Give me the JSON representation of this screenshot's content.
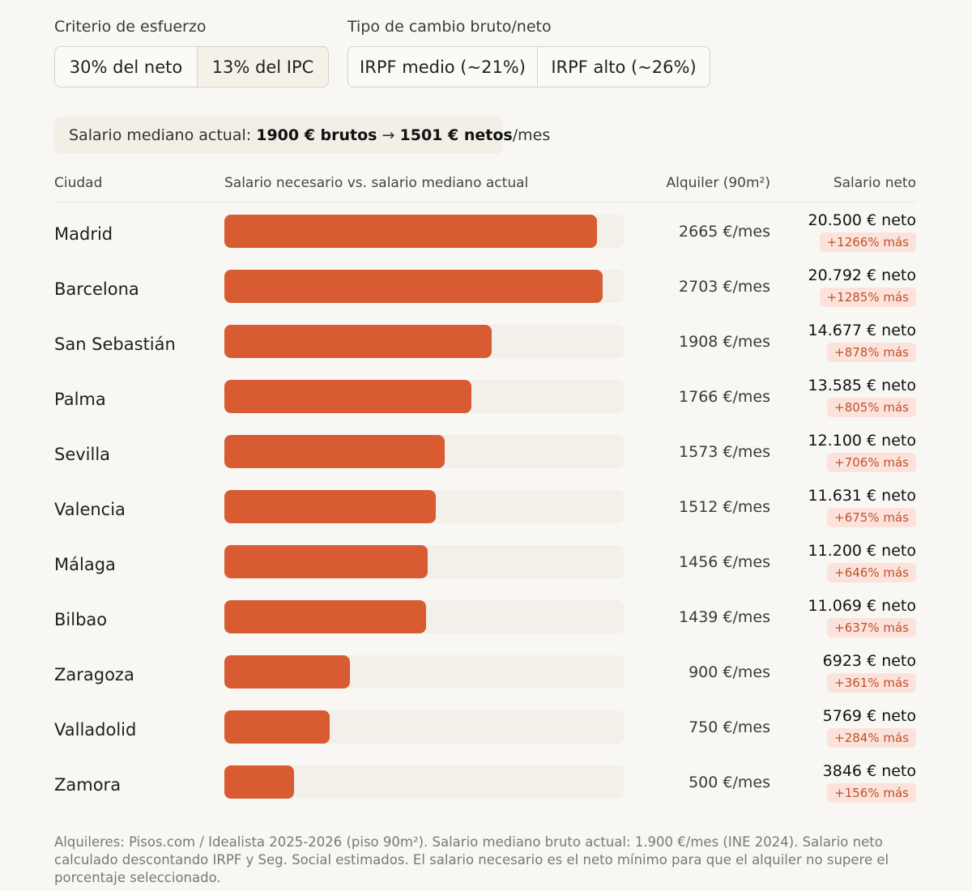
{
  "controls": {
    "effort_label": "Criterio de esfuerzo",
    "effort_options": [
      "30% del neto",
      "13% del IPC"
    ],
    "effort_selected": "13% del IPC",
    "tax_label": "Tipo de cambio bruto/neto",
    "tax_options": [
      "IRPF medio (~21%)",
      "IRPF alto (~26%)"
    ]
  },
  "summary": {
    "prefix": "Salario mediano actual:",
    "gross": "1900 € brutos",
    "arrow": "→",
    "net": "1501 € netos",
    "suffix": "/mes"
  },
  "table_headers": {
    "city": "Ciudad",
    "bar": "Salario necesario vs. salario mediano actual",
    "rent": "Alquiler (90m²)",
    "net": "Salario neto"
  },
  "chart_data": {
    "type": "bar",
    "orientation": "horizontal",
    "categories": [
      "Madrid",
      "Barcelona",
      "San Sebastián",
      "Palma",
      "Sevilla",
      "Valencia",
      "Málaga",
      "Bilbao",
      "Zaragoza",
      "Valladolid",
      "Zamora"
    ],
    "values": [
      20500,
      20792,
      14677,
      13585,
      12100,
      11631,
      11200,
      11069,
      6923,
      5769,
      3846
    ],
    "xlim": [
      0,
      22000
    ],
    "rent_labels": [
      "2665 €/mes",
      "2703 €/mes",
      "1908 €/mes",
      "1766 €/mes",
      "1573 €/mes",
      "1512 €/mes",
      "1456 €/mes",
      "1439 €/mes",
      "900 €/mes",
      "750 €/mes",
      "500 €/mes"
    ],
    "net_labels": [
      "20.500 € neto",
      "20.792 € neto",
      "14.677 € neto",
      "13.585 € neto",
      "12.100 € neto",
      "11.631 € neto",
      "11.200 € neto",
      "11.069 € neto",
      "6923 € neto",
      "5769 € neto",
      "3846 € neto"
    ],
    "pct_labels": [
      "+1266% más",
      "+1285% más",
      "+878% más",
      "+805% más",
      "+706% más",
      "+675% más",
      "+646% más",
      "+637% más",
      "+361% más",
      "+284% más",
      "+156% más"
    ],
    "bar_color": "#d85b32",
    "track_color": "#f2f0e9"
  },
  "footnote": "Alquileres: Pisos.com / Idealista 2025-2026 (piso 90m²). Salario mediano bruto actual: 1.900 €/mes (INE 2024). Salario neto calculado descontando IRPF y Seg. Social estimados. El salario necesario es el neto mínimo para que el alquiler no supere el porcentaje seleccionado."
}
